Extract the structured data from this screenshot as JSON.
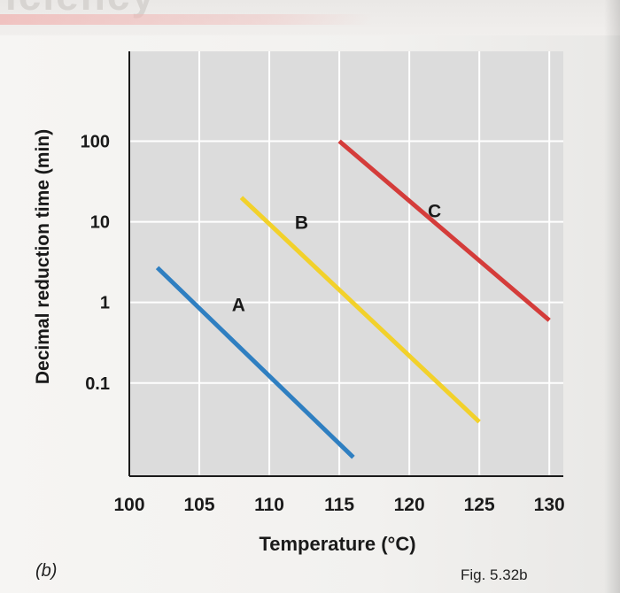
{
  "page": {
    "banner_text": "iciency",
    "panel_label": "(b)",
    "fig_label": "Fig. 5.32b"
  },
  "colors": {
    "plot_bg": "#dcdcdc",
    "grid": "#ffffff",
    "axis": "#1a1a1a",
    "series_a": "#2f7fc1",
    "series_b": "#f2d12b",
    "series_c": "#d43c3a"
  },
  "chart_data": {
    "type": "line",
    "title": "",
    "xlabel": "Temperature (°C)",
    "ylabel": "Decimal reduction time (min)",
    "y_scale": "log",
    "xlim": [
      100,
      131
    ],
    "ylim": [
      0.007,
      1300
    ],
    "x_ticks": [
      100,
      105,
      110,
      115,
      120,
      125,
      130
    ],
    "x_tick_labels": [
      "100",
      "105",
      "110",
      "115",
      "120",
      "125",
      "130"
    ],
    "y_ticks": [
      0.1,
      1,
      10,
      100
    ],
    "y_tick_labels": [
      "0.1",
      "1",
      "10",
      "100"
    ],
    "grid": true,
    "series": [
      {
        "name": "A",
        "x": [
          102,
          116
        ],
        "y": [
          2.7,
          0.012
        ],
        "label_at": [
          107.8,
          0.95
        ]
      },
      {
        "name": "B",
        "x": [
          108,
          125
        ],
        "y": [
          20,
          0.033
        ],
        "label_at": [
          112.3,
          10
        ]
      },
      {
        "name": "C",
        "x": [
          115,
          130
        ],
        "y": [
          100,
          0.6
        ],
        "label_at": [
          121.8,
          14
        ]
      }
    ]
  }
}
